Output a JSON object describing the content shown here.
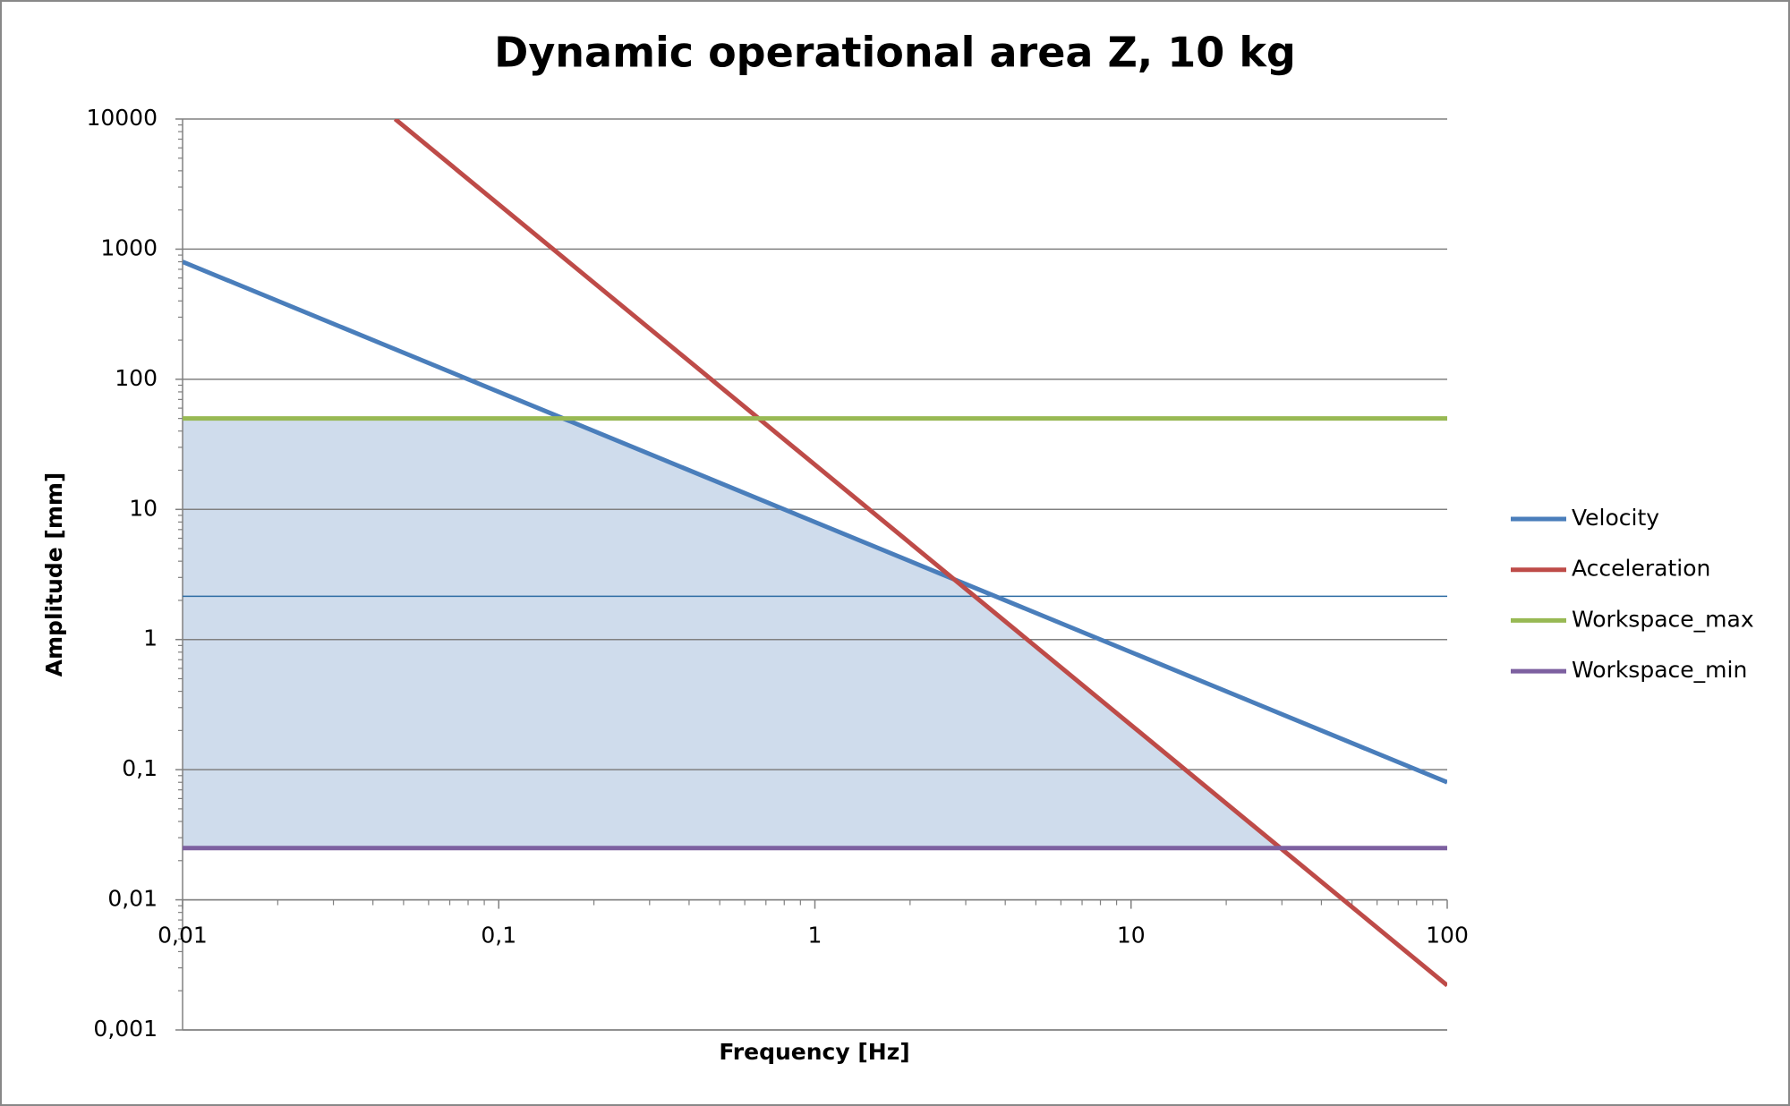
{
  "chart_data": {
    "type": "line",
    "title": "Dynamic operational area Z, 10 kg",
    "xlabel": "Frequency [Hz]",
    "ylabel": "Amplitude [mm]",
    "xscale": "log",
    "yscale": "log",
    "xlim": [
      0.01,
      100
    ],
    "ylim": [
      0.001,
      10000
    ],
    "xticks": [
      {
        "value": 0.01,
        "label": "0,01"
      },
      {
        "value": 0.1,
        "label": "0,1"
      },
      1,
      10,
      100
    ],
    "yticks": [
      {
        "value": 0.001,
        "label": "0,001"
      },
      {
        "value": 0.01,
        "label": "0,01"
      },
      {
        "value": 0.1,
        "label": "0,1"
      },
      1,
      10,
      100,
      1000,
      10000
    ],
    "xaxis_at": 0.01,
    "grid": true,
    "legend": "right",
    "fill_color": "#cfdcec",
    "reference_lines": [
      {
        "value": 2.15,
        "color": "#2e6da4"
      }
    ],
    "series": [
      {
        "name": "Velocity",
        "color": "#4a7ebb",
        "x": [
          0.01,
          100
        ],
        "values": [
          800,
          0.08
        ]
      },
      {
        "name": "Acceleration",
        "color": "#be4b48",
        "x": [
          0.047,
          100
        ],
        "values": [
          10000,
          0.0022
        ]
      },
      {
        "name": "Workspace_max",
        "color": "#98b954",
        "x": [
          0.01,
          100
        ],
        "values": [
          50,
          50
        ]
      },
      {
        "name": "Workspace_min",
        "color": "#7d60a0",
        "x": [
          0.01,
          100
        ],
        "values": [
          0.025,
          0.025
        ]
      }
    ]
  }
}
